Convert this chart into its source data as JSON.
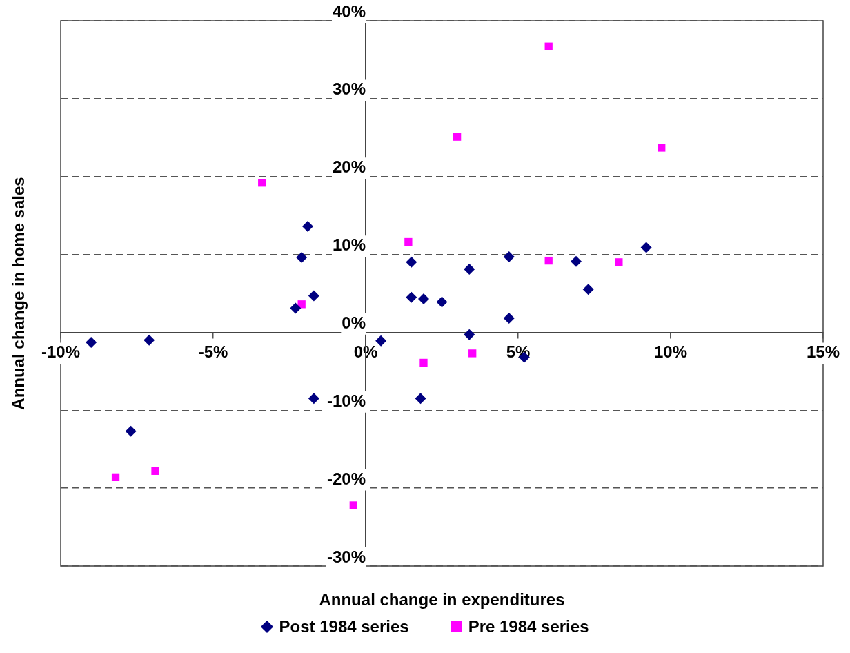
{
  "chart_data": {
    "type": "scatter",
    "xlabel": "Annual change in expenditures",
    "ylabel": "Annual change in home sales",
    "xlim": [
      -10,
      15
    ],
    "xticks": [
      {
        "value": -10,
        "label": "-10%"
      },
      {
        "value": -5,
        "label": "-5%"
      },
      {
        "value": 0,
        "label": "0%"
      },
      {
        "value": 5,
        "label": "5%"
      },
      {
        "value": 10,
        "label": "10%"
      },
      {
        "value": 15,
        "label": "15%"
      }
    ],
    "ylim": [
      -30,
      40
    ],
    "yticks": [
      {
        "value": -30,
        "label": "-30%"
      },
      {
        "value": -20,
        "label": "-20%"
      },
      {
        "value": -10,
        "label": "-10%"
      },
      {
        "value": 0,
        "label": "0%"
      },
      {
        "value": 10,
        "label": "10%"
      },
      {
        "value": 20,
        "label": "20%"
      },
      {
        "value": 30,
        "label": "30%"
      },
      {
        "value": 40,
        "label": "40%"
      }
    ],
    "grid": "y",
    "legend": "bottom",
    "series": [
      {
        "name": "Post 1984 series",
        "color": "#000080",
        "marker": "diamond",
        "x": [
          -9.0,
          -7.1,
          -7.7,
          -2.3,
          -2.1,
          -1.9,
          -1.7,
          -1.7,
          0.5,
          1.5,
          1.5,
          1.9,
          2.5,
          3.4,
          3.4,
          4.7,
          4.7,
          1.8,
          5.2,
          6.9,
          7.3,
          9.2
        ],
        "values": [
          -1.3,
          -1.0,
          -12.7,
          3.1,
          9.6,
          13.6,
          4.7,
          -8.5,
          -1.1,
          9.0,
          4.5,
          4.3,
          3.9,
          8.1,
          -0.3,
          9.7,
          1.8,
          -8.5,
          -3.2,
          9.1,
          5.5,
          10.9
        ]
      },
      {
        "name": "Pre 1984 series",
        "color": "#ff00ff",
        "marker": "square",
        "x": [
          -3.4,
          -2.1,
          -8.2,
          -6.9,
          -0.4,
          3.0,
          6.0,
          9.7,
          1.4,
          6.0,
          8.3,
          1.9,
          3.5
        ],
        "values": [
          19.2,
          3.6,
          -18.6,
          -17.8,
          -22.2,
          25.1,
          36.7,
          23.7,
          11.6,
          9.2,
          9.0,
          -3.9,
          -2.7
        ]
      }
    ]
  }
}
